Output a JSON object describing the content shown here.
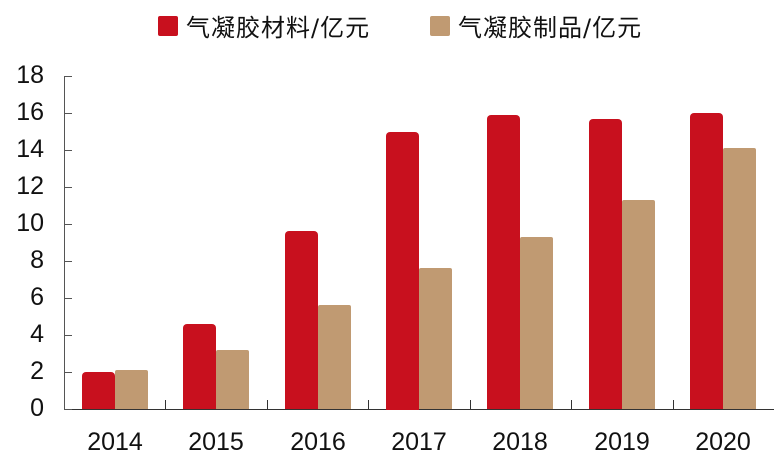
{
  "chart_data": {
    "type": "bar",
    "title": "",
    "xlabel": "",
    "ylabel": "",
    "categories": [
      "2014",
      "2015",
      "2016",
      "2017",
      "2018",
      "2019",
      "2020"
    ],
    "series": [
      {
        "name": "气凝胶材料/亿元",
        "color": "#C8101E",
        "values": [
          2.0,
          4.6,
          9.6,
          15.0,
          15.9,
          15.7,
          16.0
        ]
      },
      {
        "name": "气凝胶制品/亿元",
        "color": "#C09A72",
        "values": [
          2.1,
          3.2,
          5.6,
          7.6,
          9.3,
          11.3,
          14.1
        ]
      }
    ],
    "ylim": [
      0,
      18
    ],
    "yticks": [
      0,
      2,
      4,
      6,
      8,
      10,
      12,
      14,
      16,
      18
    ],
    "grid": false,
    "legend_position": "top"
  },
  "legend": {
    "items": [
      {
        "label": "气凝胶材料/亿元",
        "color": "#C8101E"
      },
      {
        "label": "气凝胶制品/亿元",
        "color": "#C09A72"
      }
    ]
  }
}
